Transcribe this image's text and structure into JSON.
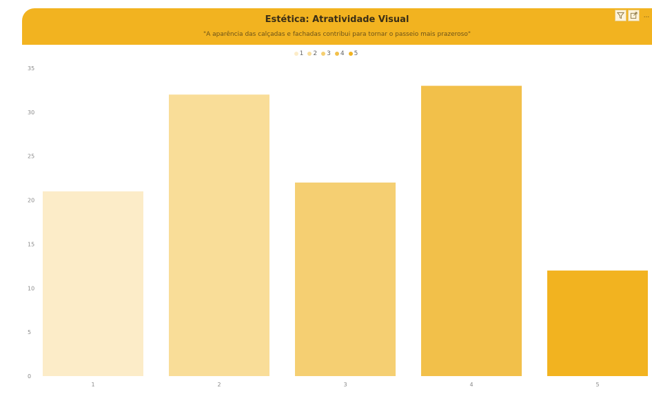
{
  "header": {
    "title": "Estética: Atratividade Visual",
    "subtitle": "\"A aparência das calçadas e fachadas contribui para tornar o passeio mais prazeroso\"",
    "background_color": "#f2b320"
  },
  "toolbar": {
    "icons": [
      "filter-icon",
      "focus-mode-icon",
      "more-options-icon"
    ],
    "more_label": "..."
  },
  "legend": {
    "items": [
      {
        "label": "1",
        "color": "#fcecc8"
      },
      {
        "label": "2",
        "color": "#f9dd98"
      },
      {
        "label": "3",
        "color": "#f5cf72"
      },
      {
        "label": "4",
        "color": "#f2c04a"
      },
      {
        "label": "5",
        "color": "#f2b320"
      }
    ]
  },
  "chart_data": {
    "type": "bar",
    "title": "Estética: Atratividade Visual",
    "subtitle": "\"A aparência das calçadas e fachadas contribui para tornar o passeio mais prazeroso\"",
    "categories": [
      "1",
      "2",
      "3",
      "4",
      "5"
    ],
    "values": [
      21,
      32,
      22,
      33,
      12
    ],
    "colors": [
      "#fcecc8",
      "#f9dd98",
      "#f5cf72",
      "#f2c04a",
      "#f2b320"
    ],
    "ylim": [
      0,
      35
    ],
    "yticks": [
      0,
      5,
      10,
      15,
      20,
      25,
      30,
      35
    ],
    "xlabel": "",
    "ylabel": "",
    "grid": false,
    "legend_position": "top-center"
  }
}
